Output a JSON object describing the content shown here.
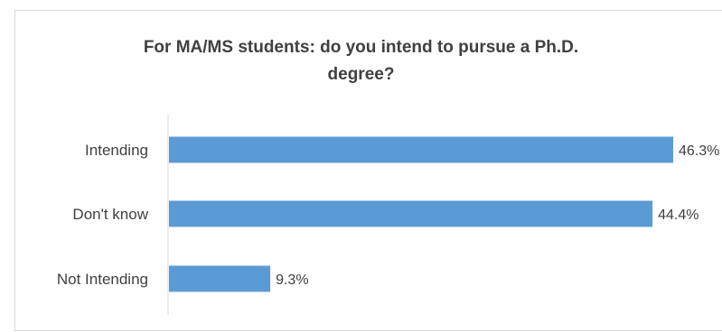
{
  "chart_data": {
    "type": "bar",
    "orientation": "horizontal",
    "title_lines": [
      "For MA/MS students: do you intend to pursue a Ph.D.",
      "degree?"
    ],
    "categories": [
      "Intending",
      "Don't know",
      "Not Intending"
    ],
    "values": [
      46.3,
      44.4,
      9.3
    ],
    "value_labels": [
      "46.3%",
      "44.4%",
      "9.3%"
    ],
    "bar_color": "#5b9bd5",
    "axis_color": "#d9d9d9",
    "xlim": [
      0,
      46.3
    ],
    "grid": false,
    "legend": "none",
    "xlabel": "",
    "ylabel": ""
  }
}
